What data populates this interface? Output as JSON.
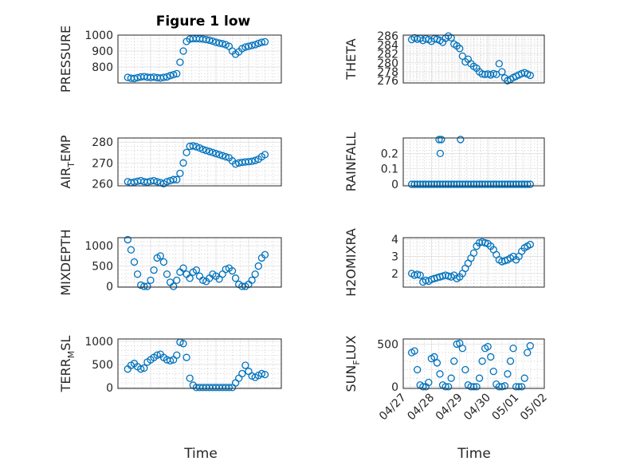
{
  "figure": {
    "title": "Figure 1 low",
    "xlabel": "Time",
    "x_ticks": [
      "04/27",
      "04/28",
      "04/29",
      "04/30",
      "05/01",
      "05/02"
    ],
    "marker_color": "#0072BD"
  },
  "chart_data": [
    {
      "type": "scatter",
      "title": "Figure 1 low",
      "ylabel": "PRESSURE",
      "xlim": [
        0,
        5
      ],
      "ylim": [
        700,
        1000
      ],
      "y_ticks": [
        "800",
        "900",
        "1000"
      ],
      "grid": true,
      "x_ticks": [],
      "xlabel": "",
      "x": [
        0.3,
        0.4,
        0.5,
        0.6,
        0.7,
        0.8,
        0.9,
        1.0,
        1.1,
        1.2,
        1.3,
        1.4,
        1.5,
        1.6,
        1.7,
        1.8,
        1.9,
        2.0,
        2.1,
        2.2,
        2.3,
        2.4,
        2.5,
        2.6,
        2.7,
        2.8,
        2.9,
        3.0,
        3.1,
        3.2,
        3.3,
        3.4,
        3.5,
        3.6,
        3.7,
        3.8,
        3.9,
        4.0,
        4.1,
        4.2,
        4.3,
        4.4,
        4.5
      ],
      "y": [
        735,
        730,
        728,
        733,
        738,
        740,
        736,
        734,
        737,
        733,
        731,
        735,
        738,
        746,
        752,
        758,
        830,
        900,
        960,
        975,
        978,
        978,
        977,
        975,
        972,
        968,
        962,
        955,
        950,
        946,
        940,
        930,
        900,
        880,
        895,
        915,
        925,
        930,
        935,
        940,
        948,
        955,
        958
      ]
    },
    {
      "type": "scatter",
      "ylabel": "THETA",
      "xlim": [
        0,
        5
      ],
      "ylim": [
        275.5,
        286.2
      ],
      "y_ticks": [
        "276",
        "278",
        "280",
        "282",
        "284",
        "286"
      ],
      "grid": true,
      "x_ticks": [],
      "xlabel": "",
      "x": [
        0.3,
        0.4,
        0.5,
        0.6,
        0.7,
        0.8,
        0.9,
        1.0,
        1.1,
        1.2,
        1.3,
        1.4,
        1.5,
        1.6,
        1.7,
        1.8,
        1.9,
        2.0,
        2.1,
        2.2,
        2.3,
        2.4,
        2.5,
        2.6,
        2.7,
        2.8,
        2.9,
        3.0,
        3.1,
        3.2,
        3.3,
        3.4,
        3.5,
        3.6,
        3.7,
        3.8,
        3.9,
        4.0,
        4.1,
        4.2,
        4.3,
        4.4,
        4.5
      ],
      "y": [
        285.2,
        285.6,
        285.3,
        285.5,
        285.0,
        285.4,
        285.2,
        284.8,
        285.4,
        285.3,
        285.0,
        284.6,
        285.5,
        286.0,
        285.6,
        284.2,
        283.8,
        283.2,
        281.5,
        280.2,
        280.8,
        279.8,
        279.2,
        278.8,
        278.0,
        277.5,
        277.4,
        277.5,
        277.3,
        277.6,
        277.4,
        279.8,
        278.0,
        276.6,
        276.0,
        276.3,
        276.7,
        277.0,
        277.3,
        277.6,
        277.8,
        277.5,
        277.2
      ]
    },
    {
      "type": "scatter",
      "ylabel": "AIR_TEMP",
      "xlim": [
        0,
        5
      ],
      "ylim": [
        259,
        282
      ],
      "y_ticks": [
        "260",
        "270",
        "280"
      ],
      "grid": true,
      "x_ticks": [],
      "xlabel": "",
      "x": [
        0.3,
        0.4,
        0.5,
        0.6,
        0.7,
        0.8,
        0.9,
        1.0,
        1.1,
        1.2,
        1.3,
        1.4,
        1.5,
        1.6,
        1.7,
        1.8,
        1.9,
        2.0,
        2.1,
        2.2,
        2.3,
        2.4,
        2.5,
        2.6,
        2.7,
        2.8,
        2.9,
        3.0,
        3.1,
        3.2,
        3.3,
        3.4,
        3.5,
        3.6,
        3.7,
        3.8,
        3.9,
        4.0,
        4.1,
        4.2,
        4.3,
        4.4,
        4.5
      ],
      "y": [
        261,
        260.5,
        260.8,
        261.2,
        261.5,
        261.0,
        260.8,
        261.2,
        261.5,
        261.0,
        260.5,
        260.0,
        261.0,
        261.5,
        262.0,
        262.0,
        265.0,
        270.0,
        275.0,
        278.0,
        278.2,
        277.8,
        277.2,
        276.5,
        276.0,
        275.5,
        275.0,
        274.5,
        274.0,
        273.5,
        273.0,
        272.5,
        271.0,
        269.5,
        270.0,
        270.3,
        270.5,
        270.6,
        270.8,
        271.2,
        271.8,
        273.0,
        274.0
      ]
    },
    {
      "type": "scatter",
      "ylabel": "RAINFALL",
      "xlim": [
        0,
        5
      ],
      "ylim": [
        -0.01,
        0.3
      ],
      "y_ticks": [
        "0",
        "0.1",
        "0.2"
      ],
      "grid": true,
      "x_ticks": [],
      "xlabel": "",
      "x": [
        0.3,
        0.4,
        0.5,
        0.6,
        0.7,
        0.8,
        0.9,
        1.0,
        1.1,
        1.2,
        1.3,
        1.4,
        1.5,
        1.6,
        1.7,
        1.8,
        1.9,
        2.0,
        2.1,
        2.2,
        2.3,
        2.4,
        2.5,
        2.6,
        2.7,
        2.8,
        2.9,
        3.0,
        3.1,
        3.2,
        3.3,
        3.4,
        3.5,
        3.6,
        3.7,
        3.8,
        3.9,
        4.0,
        4.1,
        4.2,
        4.3,
        4.4,
        4.5,
        1.27,
        1.31,
        1.35,
        2.03
      ],
      "y": [
        0,
        0,
        0,
        0,
        0,
        0,
        0,
        0,
        0,
        0,
        0,
        0,
        0,
        0,
        0,
        0,
        0,
        0,
        0,
        0,
        0,
        0,
        0,
        0,
        0,
        0,
        0,
        0,
        0,
        0,
        0,
        0,
        0,
        0,
        0,
        0,
        0,
        0,
        0,
        0,
        0,
        0,
        0,
        0.29,
        0.2,
        0.29,
        0.29
      ]
    },
    {
      "type": "scatter",
      "ylabel": "MIXDEPTH",
      "xlim": [
        0,
        5
      ],
      "ylim": [
        -20,
        1200
      ],
      "y_ticks": [
        "0",
        "500",
        "1000"
      ],
      "grid": true,
      "x_ticks": [],
      "xlabel": "",
      "x": [
        0.3,
        0.4,
        0.5,
        0.6,
        0.7,
        0.8,
        0.9,
        1.0,
        1.1,
        1.2,
        1.3,
        1.4,
        1.5,
        1.6,
        1.7,
        1.8,
        1.9,
        2.0,
        2.1,
        2.2,
        2.3,
        2.4,
        2.5,
        2.6,
        2.7,
        2.8,
        2.9,
        3.0,
        3.1,
        3.2,
        3.3,
        3.4,
        3.5,
        3.6,
        3.7,
        3.8,
        3.9,
        4.0,
        4.1,
        4.2,
        4.3,
        4.4,
        4.5
      ],
      "y": [
        1150,
        900,
        600,
        300,
        30,
        0,
        0,
        150,
        400,
        700,
        750,
        600,
        300,
        100,
        0,
        150,
        350,
        450,
        300,
        200,
        350,
        400,
        250,
        150,
        120,
        200,
        300,
        250,
        180,
        300,
        420,
        450,
        380,
        200,
        50,
        0,
        0,
        50,
        150,
        300,
        500,
        700,
        780
      ]
    },
    {
      "type": "scatter",
      "ylabel": "H2OMIXRA",
      "xlim": [
        0,
        5
      ],
      "ylim": [
        1.2,
        4.1
      ],
      "y_ticks": [
        "2",
        "3",
        "4"
      ],
      "grid": true,
      "x_ticks": [],
      "xlabel": "",
      "x": [
        0.3,
        0.4,
        0.5,
        0.6,
        0.7,
        0.8,
        0.9,
        1.0,
        1.1,
        1.2,
        1.3,
        1.4,
        1.5,
        1.6,
        1.7,
        1.8,
        1.9,
        2.0,
        2.1,
        2.2,
        2.3,
        2.4,
        2.5,
        2.6,
        2.7,
        2.8,
        2.9,
        3.0,
        3.1,
        3.2,
        3.3,
        3.4,
        3.5,
        3.6,
        3.7,
        3.8,
        3.9,
        4.0,
        4.1,
        4.2,
        4.3,
        4.4,
        4.5
      ],
      "y": [
        2.0,
        1.9,
        1.95,
        1.9,
        1.5,
        1.6,
        1.55,
        1.65,
        1.7,
        1.75,
        1.8,
        1.85,
        1.9,
        1.85,
        1.8,
        1.9,
        1.7,
        1.8,
        2.0,
        2.3,
        2.6,
        2.9,
        3.2,
        3.6,
        3.8,
        3.85,
        3.8,
        3.75,
        3.6,
        3.4,
        3.1,
        2.8,
        2.7,
        2.75,
        2.8,
        2.9,
        3.0,
        2.8,
        3.0,
        3.3,
        3.5,
        3.6,
        3.7
      ]
    },
    {
      "type": "scatter",
      "ylabel": "TERR_MSL",
      "xlim": [
        0,
        5
      ],
      "ylim": [
        -20,
        1050
      ],
      "y_ticks": [
        "0",
        "500",
        "1000"
      ],
      "grid": true,
      "x_ticks": [],
      "xlabel": "",
      "x": [
        0.3,
        0.4,
        0.5,
        0.6,
        0.7,
        0.8,
        0.9,
        1.0,
        1.1,
        1.2,
        1.3,
        1.4,
        1.5,
        1.6,
        1.7,
        1.8,
        1.9,
        2.0,
        2.1,
        2.2,
        2.3,
        2.4,
        2.5,
        2.6,
        2.7,
        2.8,
        2.9,
        3.0,
        3.1,
        3.2,
        3.3,
        3.4,
        3.5,
        3.6,
        3.7,
        3.8,
        3.9,
        4.0,
        4.1,
        4.2,
        4.3,
        4.4,
        4.5
      ],
      "y": [
        400,
        480,
        520,
        450,
        400,
        420,
        550,
        600,
        650,
        700,
        720,
        650,
        600,
        580,
        600,
        700,
        980,
        950,
        650,
        200,
        50,
        0,
        0,
        0,
        0,
        0,
        0,
        0,
        0,
        0,
        0,
        0,
        0,
        100,
        200,
        300,
        480,
        350,
        250,
        220,
        260,
        300,
        280
      ]
    },
    {
      "type": "scatter",
      "ylabel": "SUN_FLUX",
      "xlim": [
        0,
        5
      ],
      "ylim": [
        -20,
        560
      ],
      "y_ticks": [
        "0",
        "500"
      ],
      "grid": true,
      "x_ticks": [
        "04/27",
        "04/28",
        "04/29",
        "04/30",
        "05/01",
        "05/02"
      ],
      "xlabel": "Time",
      "x": [
        0.3,
        0.4,
        0.5,
        0.6,
        0.7,
        0.8,
        0.9,
        1.0,
        1.1,
        1.2,
        1.3,
        1.4,
        1.5,
        1.6,
        1.7,
        1.8,
        1.9,
        2.0,
        2.1,
        2.2,
        2.3,
        2.4,
        2.5,
        2.6,
        2.7,
        2.8,
        2.9,
        3.0,
        3.1,
        3.2,
        3.3,
        3.4,
        3.5,
        3.6,
        3.7,
        3.8,
        3.9,
        4.0,
        4.1,
        4.2,
        4.3,
        4.4,
        4.5
      ],
      "y": [
        400,
        420,
        200,
        20,
        0,
        0,
        50,
        330,
        350,
        280,
        150,
        20,
        0,
        0,
        100,
        300,
        500,
        510,
        450,
        200,
        20,
        0,
        0,
        0,
        100,
        300,
        450,
        470,
        350,
        180,
        30,
        0,
        0,
        10,
        150,
        300,
        450,
        0,
        0,
        0,
        100,
        400,
        480
      ]
    }
  ]
}
